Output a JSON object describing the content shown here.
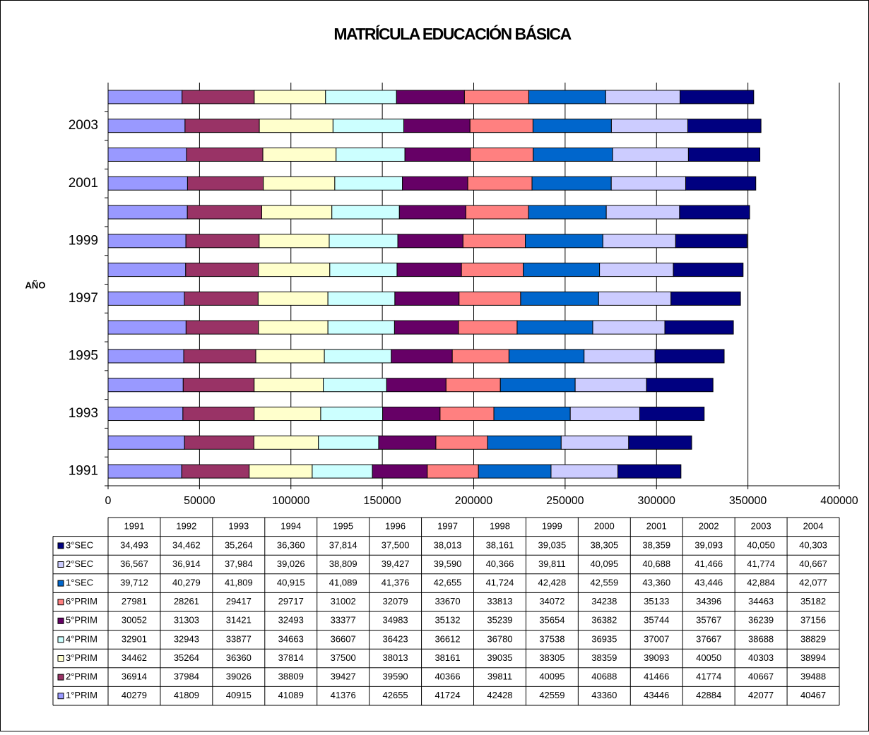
{
  "chart_data": {
    "type": "bar",
    "orientation": "horizontal",
    "stacked": true,
    "title": "MATRÍCULA EDUCACIÓN BÁSICA",
    "y_axis_label": "AÑO",
    "categories": [
      "1991",
      "1992",
      "1993",
      "1994",
      "1995",
      "1996",
      "1997",
      "1998",
      "1999",
      "2000",
      "2001",
      "2002",
      "2003",
      "2004"
    ],
    "category_label_interval": 2,
    "xlim": [
      0,
      400000
    ],
    "xticks": [
      0,
      50000,
      100000,
      150000,
      200000,
      250000,
      300000,
      350000,
      400000
    ],
    "grid": true,
    "data_table": true,
    "series": [
      {
        "name": "3°SEC",
        "color": "#000080",
        "values": [
          34493,
          34462,
          35264,
          36360,
          37814,
          37500,
          38013,
          38161,
          39035,
          38305,
          38359,
          39093,
          40050,
          40303
        ],
        "value_labels": [
          "34,493",
          "34,462",
          "35,264",
          "36,360",
          "37,814",
          "37,500",
          "38,013",
          "38,161",
          "39,035",
          "38,305",
          "38,359",
          "39,093",
          "40,050",
          "40,303"
        ]
      },
      {
        "name": "2°SEC",
        "color": "#CCCCFF",
        "values": [
          36567,
          36914,
          37984,
          39026,
          38809,
          39427,
          39590,
          40366,
          39811,
          40095,
          40688,
          41466,
          41774,
          40667
        ],
        "value_labels": [
          "36,567",
          "36,914",
          "37,984",
          "39,026",
          "38,809",
          "39,427",
          "39,590",
          "40,366",
          "39,811",
          "40,095",
          "40,688",
          "41,466",
          "41,774",
          "40,667"
        ]
      },
      {
        "name": "1°SEC",
        "color": "#0066CC",
        "values": [
          39712,
          40279,
          41809,
          40915,
          41089,
          41376,
          42655,
          41724,
          42428,
          42559,
          43360,
          43446,
          42884,
          42077
        ],
        "value_labels": [
          "39,712",
          "40,279",
          "41,809",
          "40,915",
          "41,089",
          "41,376",
          "42,655",
          "41,724",
          "42,428",
          "42,559",
          "43,360",
          "43,446",
          "42,884",
          "42,077"
        ]
      },
      {
        "name": "6°PRIM",
        "color": "#FF8080",
        "values": [
          27981,
          28261,
          29417,
          29717,
          31002,
          32079,
          33670,
          33813,
          34072,
          34238,
          35133,
          34396,
          34463,
          35182
        ]
      },
      {
        "name": "5°PRIM",
        "color": "#660066",
        "values": [
          30052,
          31303,
          31421,
          32493,
          33377,
          34983,
          35132,
          35239,
          35654,
          36382,
          35744,
          35767,
          36239,
          37156
        ]
      },
      {
        "name": "4°PRIM",
        "color": "#CCFFFF",
        "values": [
          32901,
          32943,
          33877,
          34663,
          36607,
          36423,
          36612,
          36780,
          37538,
          36935,
          37007,
          37667,
          38688,
          38829
        ]
      },
      {
        "name": "3°PRIM",
        "color": "#FFFFCC",
        "values": [
          34462,
          35264,
          36360,
          37814,
          37500,
          38013,
          38161,
          39035,
          38305,
          38359,
          39093,
          40050,
          40303,
          38994
        ]
      },
      {
        "name": "2°PRIM",
        "color": "#993366",
        "values": [
          36914,
          37984,
          39026,
          38809,
          39427,
          39590,
          40366,
          39811,
          40095,
          40688,
          41466,
          41774,
          40667,
          39488
        ]
      },
      {
        "name": "1°PRIM",
        "color": "#9999FF",
        "values": [
          40279,
          41809,
          40915,
          41089,
          41376,
          42655,
          41724,
          42428,
          42559,
          43360,
          43446,
          42884,
          42077,
          40467
        ]
      }
    ]
  }
}
